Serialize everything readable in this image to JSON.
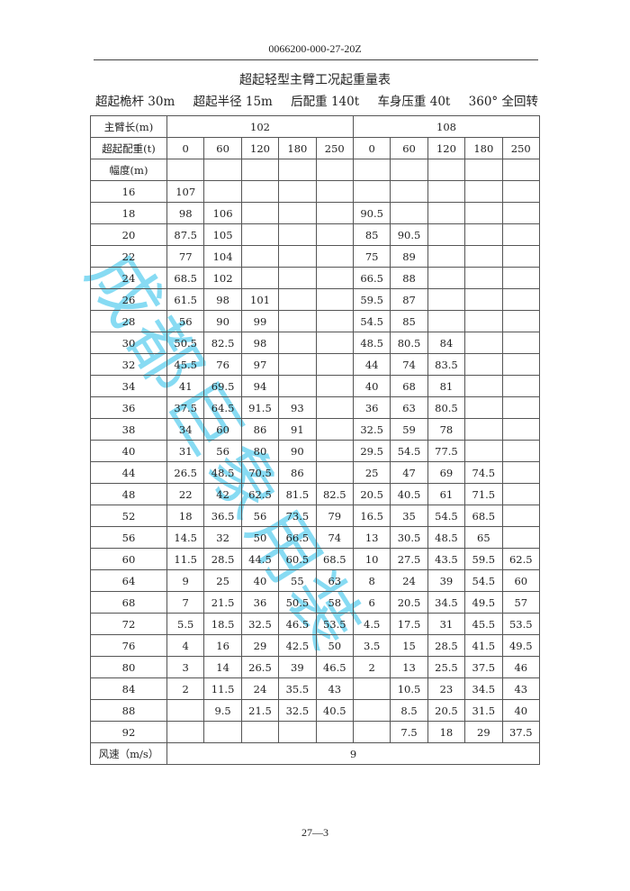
{
  "doc_number": "0066200-000-27-20Z",
  "title": "超起轻型主臂工况起重量表",
  "subtitle": [
    "超起桅杆 30m",
    "超起半径 15m",
    "后配重 140t",
    "车身压重 40t",
    "360° 全回转"
  ],
  "table": {
    "boom_length_label": "主臂长(m)",
    "boom_lengths": [
      "102",
      "108"
    ],
    "counterweight_label": "超起配重(t)",
    "counterweights": [
      "0",
      "60",
      "120",
      "180",
      "250",
      "0",
      "60",
      "120",
      "180",
      "250"
    ],
    "radius_label": "幅度(m)",
    "rows": [
      {
        "r": "16",
        "v": [
          "107",
          "",
          "",
          "",
          "",
          "",
          "",
          "",
          "",
          ""
        ]
      },
      {
        "r": "18",
        "v": [
          "98",
          "106",
          "",
          "",
          "",
          "90.5",
          "",
          "",
          "",
          ""
        ]
      },
      {
        "r": "20",
        "v": [
          "87.5",
          "105",
          "",
          "",
          "",
          "85",
          "90.5",
          "",
          "",
          ""
        ]
      },
      {
        "r": "22",
        "v": [
          "77",
          "104",
          "",
          "",
          "",
          "75",
          "89",
          "",
          "",
          ""
        ]
      },
      {
        "r": "24",
        "v": [
          "68.5",
          "102",
          "",
          "",
          "",
          "66.5",
          "88",
          "",
          "",
          ""
        ]
      },
      {
        "r": "26",
        "v": [
          "61.5",
          "98",
          "101",
          "",
          "",
          "59.5",
          "87",
          "",
          "",
          ""
        ]
      },
      {
        "r": "28",
        "v": [
          "56",
          "90",
          "99",
          "",
          "",
          "54.5",
          "85",
          "",
          "",
          ""
        ]
      },
      {
        "r": "30",
        "v": [
          "50.5",
          "82.5",
          "98",
          "",
          "",
          "48.5",
          "80.5",
          "84",
          "",
          ""
        ]
      },
      {
        "r": "32",
        "v": [
          "45.5",
          "76",
          "97",
          "",
          "",
          "44",
          "74",
          "83.5",
          "",
          ""
        ]
      },
      {
        "r": "34",
        "v": [
          "41",
          "69.5",
          "94",
          "",
          "",
          "40",
          "68",
          "81",
          "",
          ""
        ]
      },
      {
        "r": "36",
        "v": [
          "37.5",
          "64.5",
          "91.5",
          "93",
          "",
          "36",
          "63",
          "80.5",
          "",
          ""
        ]
      },
      {
        "r": "38",
        "v": [
          "34",
          "60",
          "86",
          "91",
          "",
          "32.5",
          "59",
          "78",
          "",
          ""
        ]
      },
      {
        "r": "40",
        "v": [
          "31",
          "56",
          "80",
          "90",
          "",
          "29.5",
          "54.5",
          "77.5",
          "",
          ""
        ]
      },
      {
        "r": "44",
        "v": [
          "26.5",
          "48.5",
          "70.5",
          "86",
          "",
          "25",
          "47",
          "69",
          "74.5",
          ""
        ]
      },
      {
        "r": "48",
        "v": [
          "22",
          "42",
          "62.5",
          "81.5",
          "82.5",
          "20.5",
          "40.5",
          "61",
          "71.5",
          ""
        ]
      },
      {
        "r": "52",
        "v": [
          "18",
          "36.5",
          "56",
          "73.5",
          "79",
          "16.5",
          "35",
          "54.5",
          "68.5",
          ""
        ]
      },
      {
        "r": "56",
        "v": [
          "14.5",
          "32",
          "50",
          "66.5",
          "74",
          "13",
          "30.5",
          "48.5",
          "65",
          ""
        ]
      },
      {
        "r": "60",
        "v": [
          "11.5",
          "28.5",
          "44.5",
          "60.5",
          "68.5",
          "10",
          "27.5",
          "43.5",
          "59.5",
          "62.5"
        ]
      },
      {
        "r": "64",
        "v": [
          "9",
          "25",
          "40",
          "55",
          "63",
          "8",
          "24",
          "39",
          "54.5",
          "60"
        ]
      },
      {
        "r": "68",
        "v": [
          "7",
          "21.5",
          "36",
          "50.5",
          "58",
          "6",
          "20.5",
          "34.5",
          "49.5",
          "57"
        ]
      },
      {
        "r": "72",
        "v": [
          "5.5",
          "18.5",
          "32.5",
          "46.5",
          "53.5",
          "4.5",
          "17.5",
          "31",
          "45.5",
          "53.5"
        ]
      },
      {
        "r": "76",
        "v": [
          "4",
          "16",
          "29",
          "42.5",
          "50",
          "3.5",
          "15",
          "28.5",
          "41.5",
          "49.5"
        ]
      },
      {
        "r": "80",
        "v": [
          "3",
          "14",
          "26.5",
          "39",
          "46.5",
          "2",
          "13",
          "25.5",
          "37.5",
          "46"
        ]
      },
      {
        "r": "84",
        "v": [
          "2",
          "11.5",
          "24",
          "35.5",
          "43",
          "",
          "10.5",
          "23",
          "34.5",
          "43"
        ]
      },
      {
        "r": "88",
        "v": [
          "",
          "9.5",
          "21.5",
          "32.5",
          "40.5",
          "",
          "8.5",
          "20.5",
          "31.5",
          "40"
        ]
      },
      {
        "r": "92",
        "v": [
          "",
          "",
          "",
          "",
          "",
          "",
          "7.5",
          "18",
          "29",
          "37.5"
        ]
      }
    ],
    "wind_label": "风速（m/s）",
    "wind_value": "9"
  },
  "page_number": "27—3",
  "watermark": "成都巨象用装",
  "watermark_color": "#5fd0f0"
}
